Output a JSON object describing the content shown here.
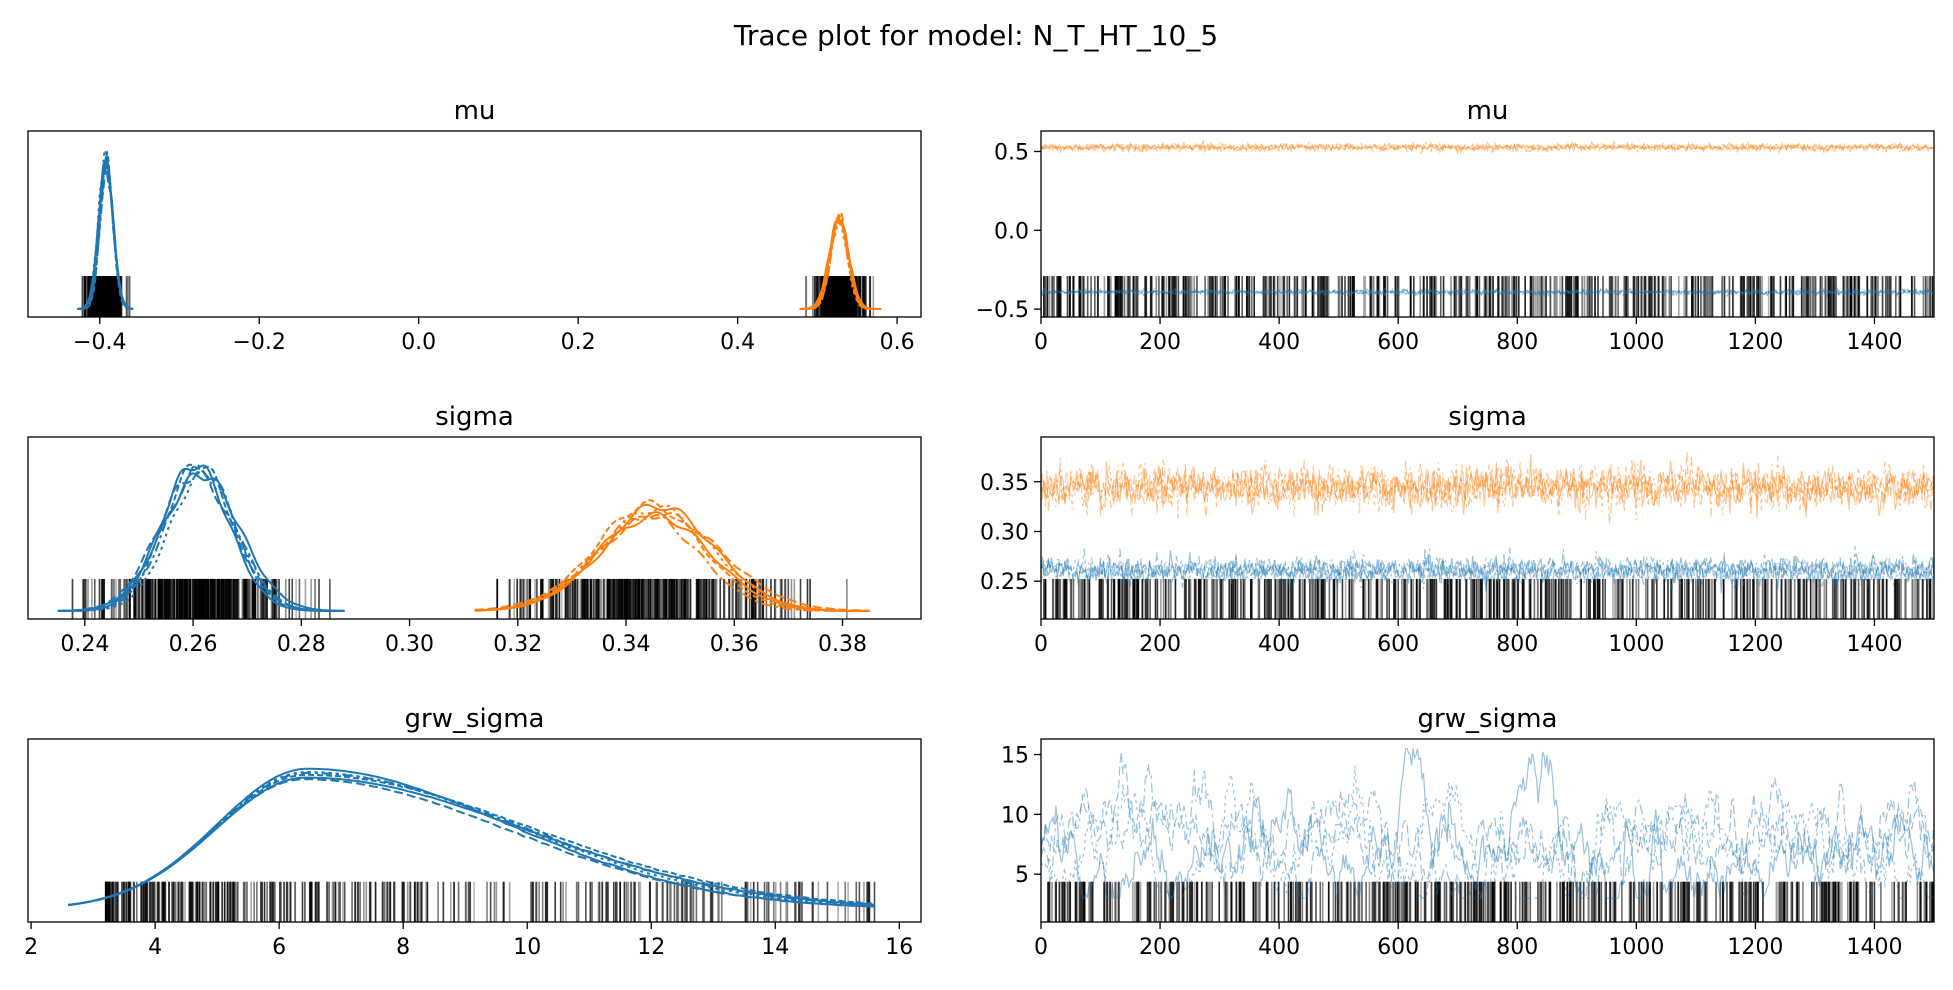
{
  "figure": {
    "title": "Trace plot for model: N_T_HT_10_5"
  },
  "colors": {
    "chain_blue": "#1f77b4",
    "chain_orange": "#ff7f0e",
    "rug": "#000000",
    "axes": "#000000"
  },
  "chart_data": [
    {
      "type": "line",
      "subtype": "density",
      "title": "mu",
      "xlim": [
        -0.49,
        0.63
      ],
      "xticks": [
        "-0.4",
        "-0.2",
        "0.0",
        "0.2",
        "0.4",
        "0.6"
      ],
      "xtick_values": [
        -0.4,
        -0.2,
        0.0,
        0.2,
        0.4,
        0.6
      ],
      "yticks": [],
      "rug_band": true,
      "series": [
        {
          "color": "blue",
          "mean": -0.392,
          "sd": 0.0085,
          "range": [
            -0.428,
            -0.358
          ],
          "peak": 0.93,
          "chains": 6
        },
        {
          "color": "orange",
          "mean": 0.527,
          "sd": 0.0115,
          "range": [
            0.478,
            0.58
          ],
          "peak": 0.59,
          "chains": 6
        }
      ]
    },
    {
      "type": "line",
      "subtype": "trace",
      "title": "mu",
      "xlim": [
        0,
        1500
      ],
      "ylim": [
        -0.55,
        0.63
      ],
      "xticks": [
        "0",
        "200",
        "400",
        "600",
        "800",
        "1000",
        "1200",
        "1400"
      ],
      "xtick_values": [
        0,
        200,
        400,
        600,
        800,
        1000,
        1200,
        1400
      ],
      "yticks": [
        "0.5",
        "0.0",
        "-0.5"
      ],
      "ytick_values": [
        0.5,
        0.0,
        -0.5
      ],
      "rug_band": true,
      "series": [
        {
          "color": "orange",
          "mean": 0.527,
          "sd": 0.0115
        },
        {
          "color": "blue",
          "mean": -0.392,
          "sd": 0.0085
        }
      ]
    },
    {
      "type": "line",
      "subtype": "density",
      "title": "sigma",
      "xlim": [
        0.2295,
        0.3945
      ],
      "xticks": [
        "0.24",
        "0.26",
        "0.28",
        "0.30",
        "0.32",
        "0.34",
        "0.36",
        "0.38"
      ],
      "xtick_values": [
        0.24,
        0.26,
        0.28,
        0.3,
        0.32,
        0.34,
        0.36,
        0.38
      ],
      "yticks": [],
      "rug_band": true,
      "series": [
        {
          "color": "blue",
          "mean": 0.261,
          "sd": 0.0068,
          "range": [
            0.235,
            0.288
          ],
          "peak": 0.95,
          "chains": 6
        },
        {
          "color": "orange",
          "mean": 0.345,
          "sd": 0.0105,
          "range": [
            0.312,
            0.385
          ],
          "peak": 0.66,
          "chains": 6
        }
      ]
    },
    {
      "type": "line",
      "subtype": "trace",
      "title": "sigma",
      "xlim": [
        0,
        1500
      ],
      "ylim": [
        0.212,
        0.395
      ],
      "xticks": [
        "0",
        "200",
        "400",
        "600",
        "800",
        "1000",
        "1200",
        "1400"
      ],
      "xtick_values": [
        0,
        200,
        400,
        600,
        800,
        1000,
        1200,
        1400
      ],
      "yticks": [
        "0.35",
        "0.30",
        "0.25"
      ],
      "ytick_values": [
        0.35,
        0.3,
        0.25
      ],
      "rug_band": true,
      "series": [
        {
          "color": "orange",
          "mean": 0.345,
          "sd": 0.0105
        },
        {
          "color": "blue",
          "mean": 0.261,
          "sd": 0.0068
        }
      ]
    },
    {
      "type": "line",
      "subtype": "density",
      "title": "grw_sigma",
      "xlim": [
        1.95,
        16.35
      ],
      "xticks": [
        "2",
        "4",
        "6",
        "8",
        "10",
        "12",
        "14",
        "16"
      ],
      "xtick_values": [
        2,
        4,
        6,
        8,
        10,
        12,
        14,
        16
      ],
      "yticks": [],
      "rug_band": true,
      "series": [
        {
          "color": "blue",
          "mode": 6.4,
          "range": [
            2.6,
            15.6
          ],
          "peak": 0.88,
          "chains": 6
        }
      ]
    },
    {
      "type": "line",
      "subtype": "trace",
      "title": "grw_sigma",
      "xlim": [
        0,
        1500
      ],
      "ylim": [
        1.0,
        16.3
      ],
      "xticks": [
        "0",
        "200",
        "400",
        "600",
        "800",
        "1000",
        "1200",
        "1400"
      ],
      "xtick_values": [
        0,
        200,
        400,
        600,
        800,
        1000,
        1200,
        1400
      ],
      "yticks": [
        "15",
        "10",
        "5"
      ],
      "ytick_values": [
        15,
        10,
        5
      ],
      "rug_band": true,
      "series": [
        {
          "color": "blue",
          "mean": 7.5,
          "sd": 2.2,
          "min": 3.0,
          "max": 15.5
        }
      ]
    }
  ]
}
